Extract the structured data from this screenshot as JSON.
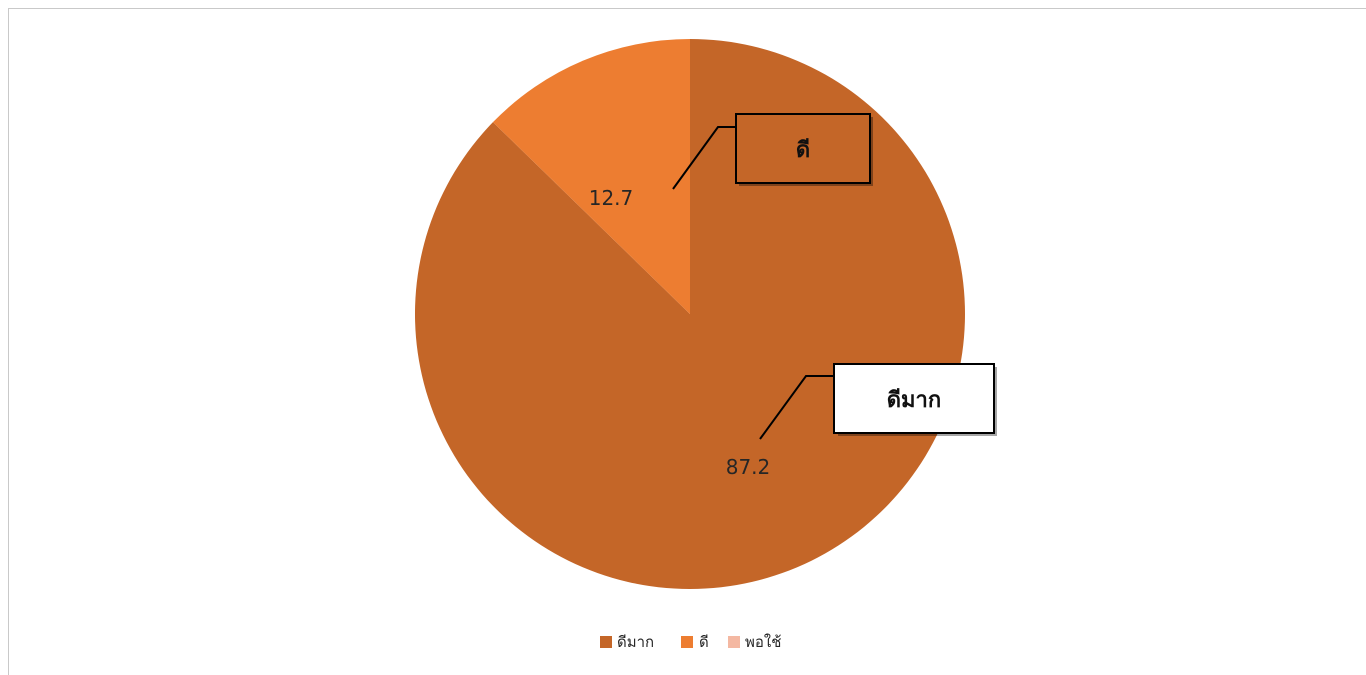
{
  "chart_data": {
    "type": "pie",
    "categories": [
      "ดีมาก",
      "ดี",
      "พอใช้"
    ],
    "values": [
      87.2,
      12.7,
      0
    ],
    "value_labels": [
      "87.2",
      "12.7",
      ""
    ],
    "colors": [
      "#c46628",
      "#ed7d31",
      "#f4b8a2"
    ],
    "callouts": [
      "ดีมาก",
      "ดี"
    ],
    "legend_position": "bottom"
  }
}
